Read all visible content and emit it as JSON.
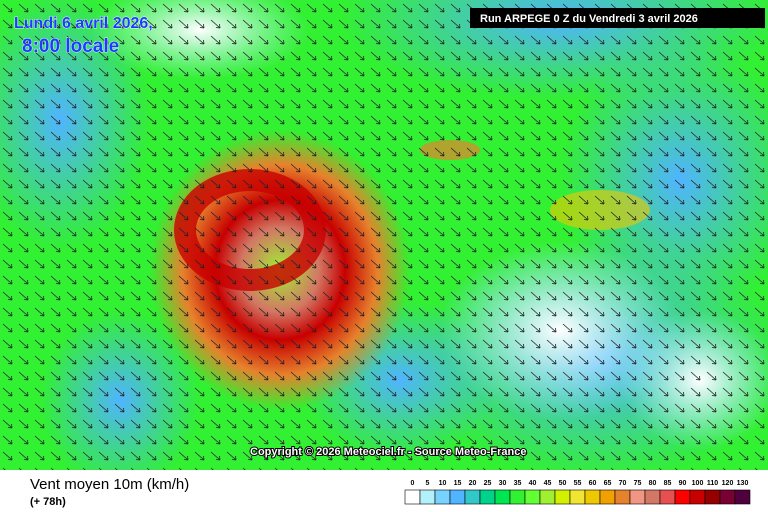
{
  "map": {
    "date": "Lundi 6 avril 2026,",
    "time": "8:00 locale",
    "run": "Run ARPEGE 0 Z du Vendredi 3 avril 2026",
    "copyright": "Copyright © 2026 Meteociel.fr - Source Meteo-France"
  },
  "footer": {
    "title": "Vent moyen 10m (km/h)",
    "lead": "(+ 78h)"
  },
  "scale": [
    {
      "label": 0,
      "color": "#ffffff"
    },
    {
      "label": 5,
      "color": "#b4f0fa"
    },
    {
      "label": 10,
      "color": "#78d2ff"
    },
    {
      "label": 15,
      "color": "#50b4ff"
    },
    {
      "label": 20,
      "color": "#32c8c8"
    },
    {
      "label": 25,
      "color": "#00d28c"
    },
    {
      "label": 30,
      "color": "#00e650"
    },
    {
      "label": 35,
      "color": "#32f032"
    },
    {
      "label": 40,
      "color": "#64ff32"
    },
    {
      "label": 45,
      "color": "#a0f032"
    },
    {
      "label": 50,
      "color": "#d2f000"
    },
    {
      "label": 55,
      "color": "#f0e632"
    },
    {
      "label": 60,
      "color": "#f0c800"
    },
    {
      "label": 65,
      "color": "#f0a000"
    },
    {
      "label": 70,
      "color": "#e6822d"
    },
    {
      "label": 75,
      "color": "#f09682"
    },
    {
      "label": 80,
      "color": "#d27864"
    },
    {
      "label": 85,
      "color": "#e65050"
    },
    {
      "label": 90,
      "color": "#ff0000"
    },
    {
      "label": 100,
      "color": "#c80000"
    },
    {
      "label": 110,
      "color": "#960000"
    },
    {
      "label": 120,
      "color": "#780032"
    },
    {
      "label": 130,
      "color": "#50003c"
    }
  ]
}
